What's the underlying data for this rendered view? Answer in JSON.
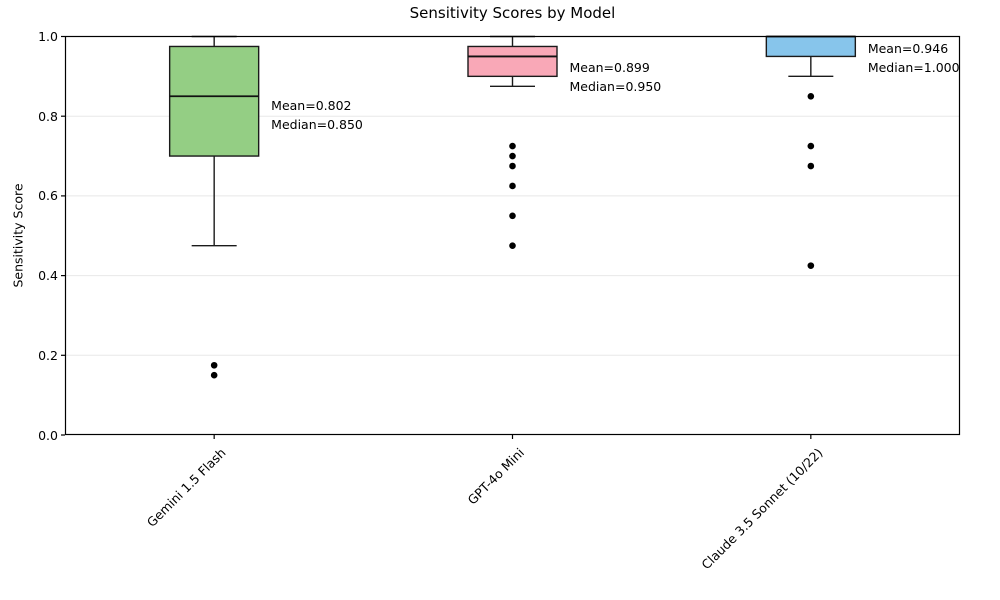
{
  "chart_data": {
    "type": "box",
    "title": "Sensitivity Scores by Model",
    "ylabel": "Sensitivity Score",
    "xlabel": "",
    "ylim": [
      0.0,
      1.0
    ],
    "grid": "horizontal-light",
    "legend": "none",
    "yticks": [
      {
        "value": 0.0,
        "label": "0.0"
      },
      {
        "value": 0.2,
        "label": "0.2"
      },
      {
        "value": 0.4,
        "label": "0.4"
      },
      {
        "value": 0.6,
        "label": "0.6"
      },
      {
        "value": 0.8,
        "label": "0.8"
      },
      {
        "value": 1.0,
        "label": "1.0"
      }
    ],
    "categories": [
      "Gemini 1.5 Flash",
      "GPT-4o Mini",
      "Claude 3.5 Sonnet (10/22)"
    ],
    "series": [
      {
        "name": "Gemini 1.5 Flash",
        "box_color": "#94ce84",
        "q1": 0.7,
        "median": 0.85,
        "q3": 0.975,
        "whisker_low": 0.475,
        "whisker_high": 1.0,
        "outliers": [
          0.175,
          0.15
        ],
        "mean": 0.802,
        "annotation": {
          "line1": "Mean=0.802",
          "line2": "Median=0.850"
        }
      },
      {
        "name": "GPT-4o Mini",
        "box_color": "#f9a8b7",
        "q1": 0.9,
        "median": 0.95,
        "q3": 0.975,
        "whisker_low": 0.875,
        "whisker_high": 1.0,
        "outliers": [
          0.725,
          0.7,
          0.675,
          0.625,
          0.55,
          0.475
        ],
        "mean": 0.899,
        "annotation": {
          "line1": "Mean=0.899",
          "line2": "Median=0.950"
        }
      },
      {
        "name": "Claude 3.5 Sonnet (10/22)",
        "box_color": "#87c5eb",
        "q1": 0.95,
        "median": 1.0,
        "q3": 1.0,
        "whisker_low": 0.9,
        "whisker_high": 1.0,
        "outliers": [
          0.85,
          0.725,
          0.675,
          0.425
        ],
        "mean": 0.946,
        "annotation": {
          "line1": "Mean=0.946",
          "line2": "Median=1.000"
        }
      }
    ],
    "colors": {
      "box_edge": "#1a1a1a",
      "whisker": "#1a1a1a",
      "median_line": "#111111",
      "outlier": "#000000",
      "grid": "#e8e8e8",
      "spine": "#000000",
      "text": "#000000"
    }
  }
}
